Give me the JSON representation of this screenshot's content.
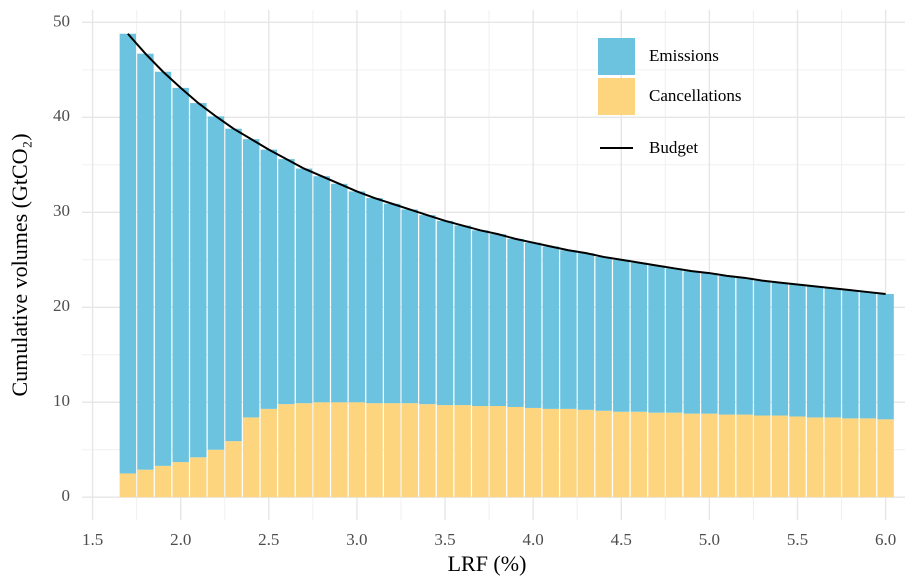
{
  "chart_data": {
    "type": "bar",
    "stacked": true,
    "xlabel": "LRF (%)",
    "ylabel": "Cumulative volumes (GtCO₂)",
    "x": [
      1.7,
      1.8,
      1.9,
      2.0,
      2.1,
      2.2,
      2.3,
      2.4,
      2.5,
      2.6,
      2.7,
      2.8,
      2.9,
      3.0,
      3.1,
      3.2,
      3.3,
      3.4,
      3.5,
      3.6,
      3.7,
      3.8,
      3.9,
      4.0,
      4.1,
      4.2,
      4.3,
      4.4,
      4.5,
      4.6,
      4.7,
      4.8,
      4.9,
      5.0,
      5.1,
      5.2,
      5.3,
      5.4,
      5.5,
      5.6,
      5.7,
      5.8,
      5.9,
      6.0
    ],
    "series": [
      {
        "name": "Emissions",
        "type": "bar",
        "color": "#6cc3e0",
        "values": [
          46.3,
          43.8,
          41.5,
          39.4,
          37.3,
          35.1,
          32.9,
          29.3,
          27.3,
          25.8,
          24.7,
          23.8,
          23.0,
          22.2,
          21.6,
          21.0,
          20.4,
          19.9,
          19.4,
          18.9,
          18.5,
          18.1,
          17.7,
          17.4,
          17.1,
          16.7,
          16.5,
          16.2,
          16.0,
          15.7,
          15.5,
          15.2,
          15.0,
          14.8,
          14.6,
          14.4,
          14.2,
          14.0,
          13.9,
          13.8,
          13.6,
          13.5,
          13.3,
          13.2
        ]
      },
      {
        "name": "Cancellations",
        "type": "bar",
        "color": "#fdd57e",
        "values": [
          2.5,
          2.9,
          3.3,
          3.7,
          4.2,
          5.0,
          5.9,
          8.4,
          9.3,
          9.8,
          9.9,
          10.0,
          10.0,
          10.0,
          9.9,
          9.9,
          9.9,
          9.8,
          9.7,
          9.7,
          9.6,
          9.6,
          9.5,
          9.4,
          9.3,
          9.3,
          9.2,
          9.1,
          9.0,
          9.0,
          8.9,
          8.9,
          8.8,
          8.8,
          8.7,
          8.7,
          8.6,
          8.6,
          8.5,
          8.4,
          8.4,
          8.3,
          8.3,
          8.2
        ]
      },
      {
        "name": "Budget",
        "type": "line",
        "color": "#000000",
        "values": [
          48.8,
          46.7,
          44.8,
          43.1,
          41.5,
          40.1,
          38.8,
          37.7,
          36.6,
          35.6,
          34.6,
          33.8,
          33.0,
          32.2,
          31.5,
          30.9,
          30.3,
          29.7,
          29.1,
          28.6,
          28.1,
          27.7,
          27.2,
          26.8,
          26.4,
          26.0,
          25.7,
          25.3,
          25.0,
          24.7,
          24.4,
          24.1,
          23.8,
          23.6,
          23.3,
          23.1,
          22.8,
          22.6,
          22.4,
          22.2,
          22.0,
          21.8,
          21.6,
          21.4
        ]
      }
    ],
    "xlim": [
      1.44,
      6.11
    ],
    "ylim": [
      -2.4,
      51.3
    ],
    "xticks": [
      1.5,
      {
        "value": 2,
        "label": "2.0"
      },
      2.5,
      {
        "value": 3,
        "label": "3.0"
      },
      3.5,
      {
        "value": 4,
        "label": "4.0"
      },
      4.5,
      {
        "value": 5,
        "label": "5.0"
      },
      5.5,
      {
        "value": 6,
        "label": "6.0"
      }
    ],
    "yticks": [
      0,
      10,
      20,
      30,
      40,
      50
    ],
    "grid": true,
    "legend": "top-right"
  }
}
